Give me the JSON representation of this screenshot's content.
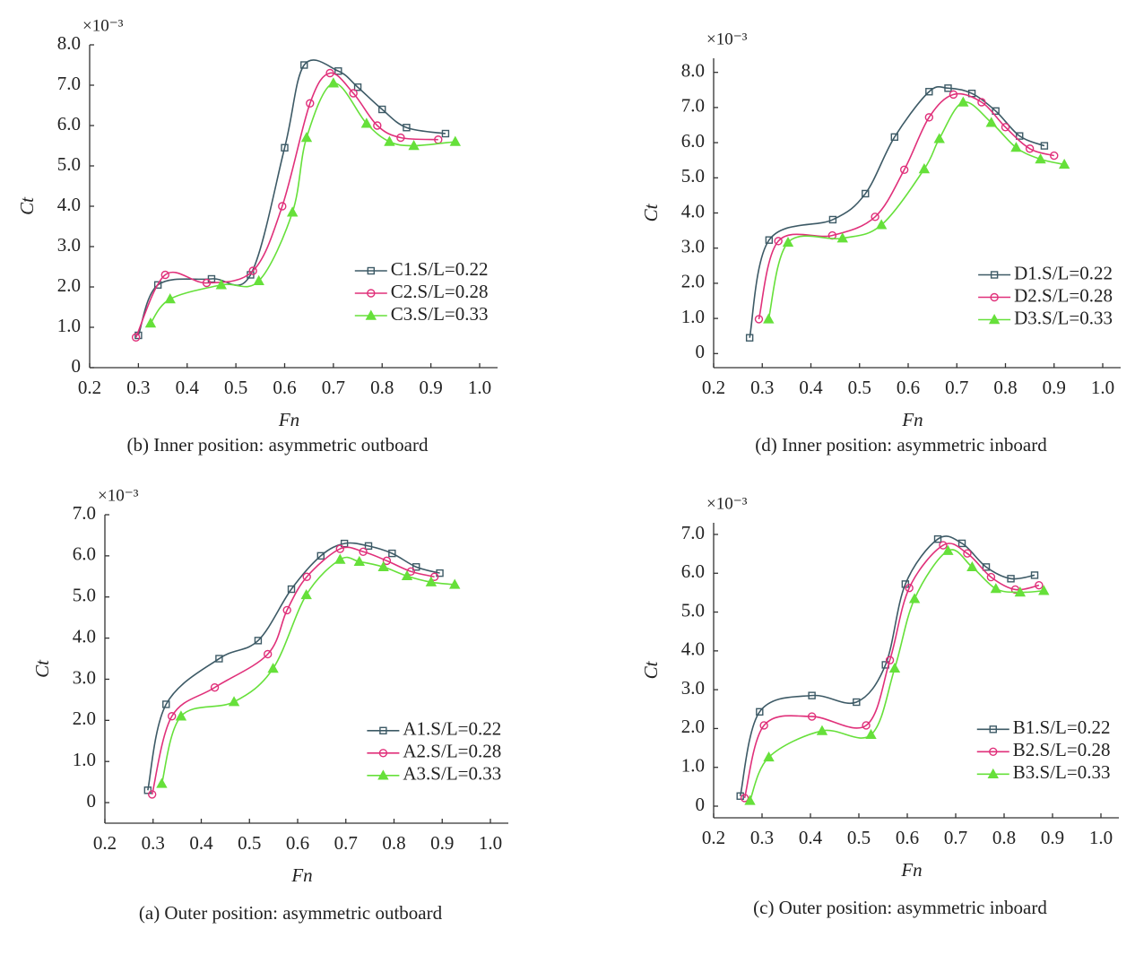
{
  "chart_data": [
    {
      "type": "line",
      "caption": "(b) Inner position: asymmetric outboard",
      "multiplier": "×10⁻³",
      "xlabel": "Fn",
      "ylabel": "Ct",
      "xlim": [
        0.2,
        1.0
      ],
      "ylim": [
        0,
        8
      ],
      "xticks": [
        0.2,
        0.3,
        0.4,
        0.5,
        0.6,
        0.7,
        0.8,
        0.9,
        {
          "value": 1,
          "label": "1.0"
        }
      ],
      "yticks": [
        0,
        {
          "value": 1,
          "label": "1.0"
        },
        {
          "value": 2,
          "label": "2.0"
        },
        {
          "value": 3,
          "label": "3.0"
        },
        {
          "value": 4,
          "label": "4.0"
        },
        {
          "value": 5,
          "label": "5.0"
        },
        {
          "value": 6,
          "label": "6.0"
        },
        {
          "value": 7,
          "label": "7.0"
        },
        {
          "value": 8,
          "label": "8.0"
        }
      ],
      "series": [
        {
          "name": "C1.S/L=0.22",
          "color": "#3d5a66",
          "marker": "square",
          "x": [
            0.3,
            0.34,
            0.45,
            0.53,
            0.6,
            0.64,
            0.71,
            0.75,
            0.8,
            0.85,
            0.93
          ],
          "values": [
            0.8,
            2.05,
            2.2,
            2.3,
            5.45,
            7.5,
            7.35,
            6.95,
            6.4,
            5.95,
            5.8
          ]
        },
        {
          "name": "C2.S/L=0.28",
          "color": "#e0307a",
          "marker": "circle",
          "x": [
            0.295,
            0.355,
            0.44,
            0.535,
            0.595,
            0.652,
            0.693,
            0.741,
            0.79,
            0.838,
            0.915
          ],
          "values": [
            0.75,
            2.3,
            2.1,
            2.4,
            4.0,
            6.55,
            7.3,
            6.8,
            6.0,
            5.7,
            5.65
          ]
        },
        {
          "name": "C3.S/L=0.33",
          "color": "#66e03a",
          "marker": "triangle",
          "x": [
            0.325,
            0.365,
            0.47,
            0.547,
            0.616,
            0.645,
            0.7,
            0.768,
            0.815,
            0.865,
            0.95
          ],
          "values": [
            1.1,
            1.7,
            2.05,
            2.15,
            3.85,
            5.7,
            7.05,
            6.05,
            5.6,
            5.5,
            5.6
          ]
        }
      ]
    },
    {
      "type": "line",
      "caption": "(d) Inner position: asymmetric inboard",
      "multiplier": "×10⁻³",
      "xlabel": "Fn",
      "ylabel": "Ct",
      "xlim": [
        0.2,
        1.0
      ],
      "ylim": [
        -0.4,
        8.4
      ],
      "xticks": [
        0.2,
        0.3,
        0.4,
        0.5,
        0.6,
        0.7,
        0.8,
        0.9,
        {
          "value": 1,
          "label": "1.0"
        }
      ],
      "yticks": [
        0,
        {
          "value": 1,
          "label": "1.0"
        },
        {
          "value": 2,
          "label": "2.0"
        },
        {
          "value": 3,
          "label": "3.0"
        },
        {
          "value": 4,
          "label": "4.0"
        },
        {
          "value": 5,
          "label": "5.0"
        },
        {
          "value": 6,
          "label": "6.0"
        },
        {
          "value": 7,
          "label": "7.0"
        },
        {
          "value": 8,
          "label": "8.0"
        }
      ],
      "series": [
        {
          "name": "D1.S/L=0.22",
          "color": "#3d5a66",
          "marker": "square",
          "x": [
            0.274,
            0.314,
            0.445,
            0.512,
            0.572,
            0.643,
            0.682,
            0.731,
            0.78,
            0.829,
            0.88
          ],
          "values": [
            0.45,
            3.23,
            3.81,
            4.55,
            6.16,
            7.45,
            7.55,
            7.4,
            6.9,
            6.19,
            5.91
          ]
        },
        {
          "name": "D2.S/L=0.28",
          "color": "#e0307a",
          "marker": "circle",
          "x": [
            0.293,
            0.333,
            0.444,
            0.532,
            0.592,
            0.643,
            0.693,
            0.751,
            0.8,
            0.85,
            0.9
          ],
          "values": [
            0.98,
            3.2,
            3.36,
            3.89,
            5.23,
            6.72,
            7.37,
            7.15,
            6.44,
            5.83,
            5.63
          ]
        },
        {
          "name": "D3.S/L=0.33",
          "color": "#66e03a",
          "marker": "triangle",
          "x": [
            0.313,
            0.353,
            0.465,
            0.545,
            0.633,
            0.664,
            0.713,
            0.771,
            0.822,
            0.872,
            0.921
          ],
          "values": [
            0.98,
            3.16,
            3.28,
            3.66,
            5.25,
            6.11,
            7.15,
            6.57,
            5.86,
            5.53,
            5.38
          ]
        }
      ]
    },
    {
      "type": "line",
      "caption": "(a) Outer position: asymmetric outboard",
      "multiplier": "×10⁻³",
      "xlabel": "Fn",
      "ylabel": "Ct",
      "xlim": [
        0.2,
        1.0
      ],
      "ylim": [
        -0.5,
        7.0
      ],
      "xticks": [
        0.2,
        0.3,
        0.4,
        0.5,
        0.6,
        0.7,
        0.8,
        0.9,
        {
          "value": 1,
          "label": "1.0"
        }
      ],
      "yticks": [
        0,
        {
          "value": 1,
          "label": "1.0"
        },
        {
          "value": 2,
          "label": "2.0"
        },
        {
          "value": 3,
          "label": "3.0"
        },
        {
          "value": 4,
          "label": "4.0"
        },
        {
          "value": 5,
          "label": "5.0"
        },
        {
          "value": 6,
          "label": "6.0"
        },
        {
          "value": 7,
          "label": "7.0"
        }
      ],
      "series": [
        {
          "name": "A1.S/L=0.22",
          "color": "#3d5a66",
          "marker": "square",
          "x": [
            0.289,
            0.327,
            0.437,
            0.518,
            0.587,
            0.648,
            0.697,
            0.747,
            0.796,
            0.846,
            0.895
          ],
          "values": [
            0.3,
            2.39,
            3.5,
            3.94,
            5.19,
            6.0,
            6.3,
            6.24,
            6.06,
            5.73,
            5.58
          ]
        },
        {
          "name": "A2.S/L=0.28",
          "color": "#e0307a",
          "marker": "circle",
          "x": [
            0.298,
            0.339,
            0.428,
            0.538,
            0.578,
            0.619,
            0.688,
            0.736,
            0.785,
            0.835,
            0.884
          ],
          "values": [
            0.2,
            2.1,
            2.8,
            3.61,
            4.68,
            5.49,
            6.17,
            6.1,
            5.88,
            5.62,
            5.49
          ]
        },
        {
          "name": "A3.S/L=0.33",
          "color": "#66e03a",
          "marker": "triangle",
          "x": [
            0.318,
            0.358,
            0.468,
            0.549,
            0.618,
            0.688,
            0.728,
            0.778,
            0.827,
            0.877,
            0.926
          ],
          "values": [
            0.46,
            2.1,
            2.45,
            3.26,
            5.05,
            5.91,
            5.86,
            5.73,
            5.51,
            5.36,
            5.3
          ]
        }
      ]
    },
    {
      "type": "line",
      "caption": "(c) Outer position: asymmetric inboard",
      "multiplier": "×10⁻³",
      "xlabel": "Fn",
      "ylabel": "Ct",
      "xlim": [
        0.2,
        1.0
      ],
      "ylim": [
        -0.3,
        7.3
      ],
      "xticks": [
        0.2,
        0.3,
        0.4,
        0.5,
        0.6,
        0.7,
        0.8,
        0.9,
        {
          "value": 1,
          "label": "1.0"
        }
      ],
      "yticks": [
        0,
        {
          "value": 1,
          "label": "1.0"
        },
        {
          "value": 2,
          "label": "2.0"
        },
        {
          "value": 3,
          "label": "3.0"
        },
        {
          "value": 4,
          "label": "4.0"
        },
        {
          "value": 5,
          "label": "5.0"
        },
        {
          "value": 6,
          "label": "6.0"
        },
        {
          "value": 7,
          "label": "7.0"
        }
      ],
      "series": [
        {
          "name": "B1.S/L=0.22",
          "color": "#3d5a66",
          "marker": "square",
          "x": [
            0.255,
            0.295,
            0.403,
            0.495,
            0.555,
            0.596,
            0.663,
            0.713,
            0.763,
            0.814,
            0.863
          ],
          "values": [
            0.26,
            2.43,
            2.85,
            2.68,
            3.64,
            5.72,
            6.88,
            6.77,
            6.16,
            5.86,
            5.95
          ]
        },
        {
          "name": "B2.S/L=0.28",
          "color": "#e0307a",
          "marker": "circle",
          "x": [
            0.264,
            0.304,
            0.403,
            0.515,
            0.564,
            0.604,
            0.674,
            0.724,
            0.773,
            0.823,
            0.872
          ],
          "values": [
            0.21,
            2.08,
            2.31,
            2.08,
            3.76,
            5.62,
            6.72,
            6.51,
            5.9,
            5.58,
            5.69
          ]
        },
        {
          "name": "B3.S/L=0.33",
          "color": "#66e03a",
          "marker": "triangle",
          "x": [
            0.275,
            0.314,
            0.424,
            0.525,
            0.574,
            0.615,
            0.684,
            0.734,
            0.783,
            0.833,
            0.882
          ],
          "values": [
            0.14,
            1.26,
            1.94,
            1.84,
            3.55,
            5.34,
            6.58,
            6.16,
            5.6,
            5.51,
            5.55
          ]
        }
      ]
    }
  ]
}
